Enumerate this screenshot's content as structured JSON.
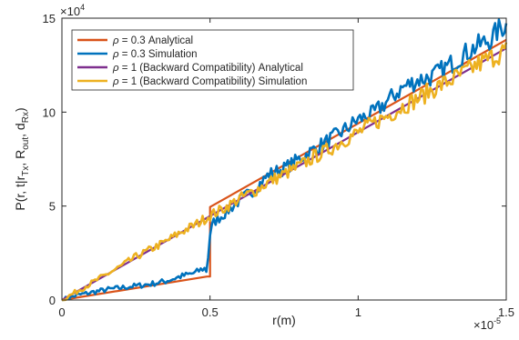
{
  "chart_data": {
    "type": "line",
    "title": "",
    "xlabel": "r(m)",
    "ylabel": "P(r, t|r_Tx, R_out, d_Rx)",
    "ylabel_parts": {
      "p": "P(r",
      "c1": ", t|r",
      "sub_tx": "Tx",
      "c2": ", R",
      "sub_out": "out",
      "c3": ", d",
      "sub_rx": "Rx",
      "close": ")"
    },
    "x_multiplier": {
      "base": "×10",
      "exp": "-5"
    },
    "y_multiplier": {
      "base": "×10",
      "exp": "4"
    },
    "xlim": [
      0,
      1.5
    ],
    "ylim": [
      0,
      15
    ],
    "xticks": [
      0,
      0.5,
      1,
      1.5
    ],
    "xtick_labels": [
      "0",
      "0.5",
      "1",
      "1.5"
    ],
    "yticks": [
      0,
      5,
      10,
      15
    ],
    "ytick_labels": [
      "0",
      "5",
      "10",
      "15"
    ],
    "grid": false,
    "legend_position": "top-left",
    "series": [
      {
        "name": "ρ = 0.3 Analytical",
        "legend_sym": "ρ",
        "legend_rest": " = 0.3 Analytical",
        "color": "#D95319",
        "kind": "analytical",
        "x": [
          0,
          0.49,
          0.49,
          0.5,
          0.5,
          1.5
        ],
        "y": [
          0,
          1.25,
          1.25,
          1.25,
          4.95,
          13.85
        ]
      },
      {
        "name": "ρ = 0.3 Simulation",
        "legend_sym": "ρ",
        "legend_rest": " = 0.3 Simulation",
        "color": "#0072BD",
        "kind": "simulation",
        "x": [
          0,
          0.05,
          0.1,
          0.15,
          0.2,
          0.25,
          0.3,
          0.35,
          0.4,
          0.45,
          0.48,
          0.49,
          0.495,
          0.5,
          0.51,
          0.55,
          0.6,
          0.65,
          0.7,
          0.75,
          0.8,
          0.85,
          0.9,
          0.95,
          1.0,
          1.05,
          1.1,
          1.15,
          1.2,
          1.25,
          1.3,
          1.35,
          1.4,
          1.45,
          1.48,
          1.5
        ],
        "y": [
          0,
          0.25,
          0.4,
          0.55,
          0.65,
          0.75,
          0.85,
          1.0,
          1.25,
          1.45,
          1.7,
          1.5,
          2.6,
          3.5,
          4.1,
          4.6,
          5.3,
          5.9,
          6.7,
          7.0,
          7.5,
          8.0,
          8.5,
          9.0,
          9.6,
          9.9,
          10.6,
          11.3,
          11.7,
          11.9,
          12.4,
          13.0,
          13.5,
          13.9,
          14.5,
          14.6
        ]
      },
      {
        "name": "ρ = 1 (Backward Compatibility) Analytical",
        "legend_sym": "ρ",
        "legend_rest": " = 1 (Backward Compatibility) Analytical",
        "color": "#7E2F8E",
        "kind": "analytical",
        "x": [
          0,
          1.5
        ],
        "y": [
          0,
          13.4
        ]
      },
      {
        "name": "ρ = 1 (Backward Compatibility) Simulation",
        "legend_sym": "ρ",
        "legend_rest": " = 1 (Backward Compatibility) Simulation",
        "color": "#EDB120",
        "kind": "simulation",
        "x": [
          0,
          0.05,
          0.1,
          0.15,
          0.2,
          0.25,
          0.3,
          0.35,
          0.4,
          0.45,
          0.5,
          0.55,
          0.6,
          0.65,
          0.7,
          0.75,
          0.8,
          0.85,
          0.9,
          0.95,
          1.0,
          1.05,
          1.1,
          1.15,
          1.2,
          1.25,
          1.3,
          1.35,
          1.4,
          1.45,
          1.5
        ],
        "y": [
          0,
          0.45,
          0.9,
          1.35,
          1.8,
          2.3,
          2.7,
          3.1,
          3.6,
          4.0,
          4.5,
          4.9,
          5.4,
          5.8,
          6.3,
          6.7,
          7.1,
          7.6,
          8.0,
          8.5,
          8.9,
          9.4,
          9.8,
          10.3,
          10.7,
          11.2,
          11.6,
          12.0,
          12.5,
          12.9,
          13.3
        ]
      }
    ]
  }
}
